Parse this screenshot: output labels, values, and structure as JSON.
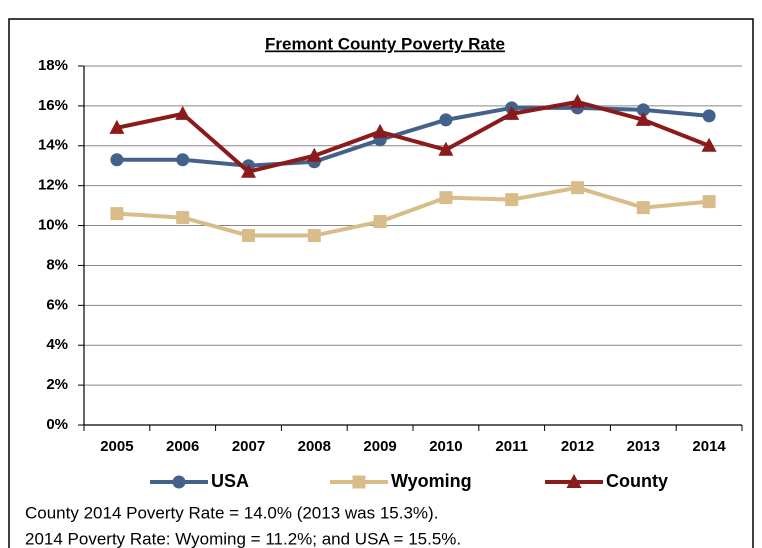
{
  "chart_data": {
    "type": "line",
    "title": "Fremont County Poverty Rate",
    "categories": [
      "2005",
      "2006",
      "2007",
      "2008",
      "2009",
      "2010",
      "2011",
      "2012",
      "2013",
      "2014"
    ],
    "series": [
      {
        "name": "USA",
        "color": "#44618a",
        "marker": "circle",
        "values": [
          13.3,
          13.3,
          13.0,
          13.2,
          14.3,
          15.3,
          15.9,
          15.9,
          15.8,
          15.5
        ]
      },
      {
        "name": "Wyoming",
        "color": "#d8bd8a",
        "marker": "square",
        "values": [
          10.6,
          10.4,
          9.5,
          9.5,
          10.2,
          11.4,
          11.3,
          11.9,
          10.9,
          11.2
        ]
      },
      {
        "name": "County",
        "color": "#8b1a1a",
        "marker": "triangle",
        "values": [
          14.9,
          15.6,
          12.7,
          13.5,
          14.7,
          13.8,
          15.6,
          16.2,
          15.3,
          14.0
        ]
      }
    ],
    "ylim": [
      0,
      18
    ],
    "yticks": [
      {
        "value": 0,
        "label": "0%"
      },
      {
        "value": 2,
        "label": "2%"
      },
      {
        "value": 4,
        "label": "4%"
      },
      {
        "value": 6,
        "label": "6%"
      },
      {
        "value": 8,
        "label": "8%"
      },
      {
        "value": 10,
        "label": "10%"
      },
      {
        "value": 12,
        "label": "12%"
      },
      {
        "value": 14,
        "label": "14%"
      },
      {
        "value": 16,
        "label": "16%"
      },
      {
        "value": 18,
        "label": "18%"
      }
    ],
    "grid": true,
    "legend": "bottom",
    "notes": [
      "County 2014 Poverty Rate = 14.0% (2013 was 15.3%).",
      "2014 Poverty Rate: Wyoming = 11.2%; and USA = 15.5%."
    ]
  }
}
